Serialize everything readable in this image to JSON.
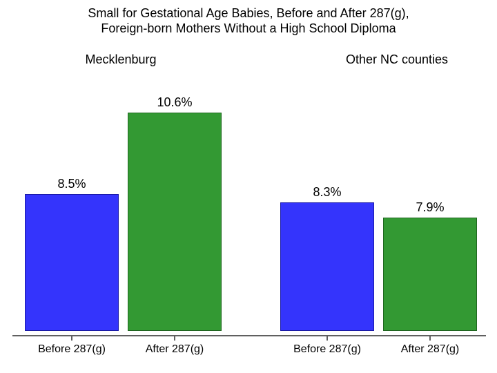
{
  "chart_data": {
    "type": "bar",
    "title_line1": "Small for Gestational Age Babies, Before and After 287(g),",
    "title_line2": "Foreign-born Mothers Without a High School Diploma",
    "group_labels": [
      "Mecklenburg",
      "Other NC counties"
    ],
    "categories": [
      "Before 287(g)",
      "After 287(g)",
      "Before 287(g)",
      "After 287(g)"
    ],
    "series": [
      {
        "group": "Mecklenburg",
        "category": "Before 287(g)",
        "value": 8.5,
        "label": "8.5%",
        "fill": "#3434fc",
        "border": "#1a1aa8"
      },
      {
        "group": "Mecklenburg",
        "category": "After 287(g)",
        "value": 10.6,
        "label": "10.6%",
        "fill": "#339933",
        "border": "#1f661f"
      },
      {
        "group": "Other NC counties",
        "category": "Before 287(g)",
        "value": 8.3,
        "label": "8.3%",
        "fill": "#3434fc",
        "border": "#1a1aa8"
      },
      {
        "group": "Other NC counties",
        "category": "After 287(g)",
        "value": 7.9,
        "label": "7.9%",
        "fill": "#339933",
        "border": "#1f661f"
      }
    ],
    "ylim": [
      5,
      11.6
    ],
    "xlabel": "",
    "ylabel": "",
    "grid": false,
    "legend": "none",
    "value_suffix": "%"
  },
  "colors": {
    "blue_fill": "#3434fc",
    "blue_border": "#1a1aa8",
    "green_fill": "#339933",
    "green_border": "#1f661f",
    "axis": "#606060",
    "text": "#000000",
    "background": "#ffffff"
  }
}
